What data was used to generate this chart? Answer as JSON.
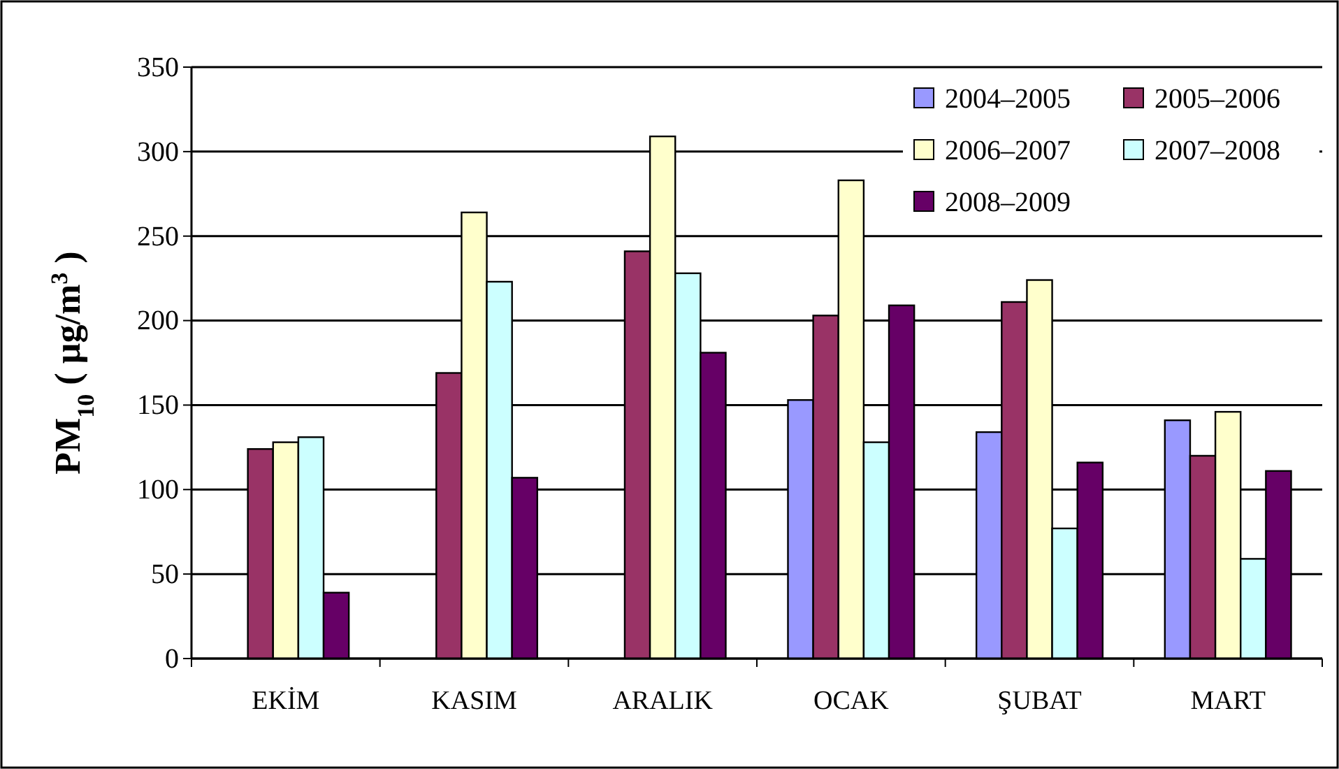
{
  "chart_data": {
    "type": "bar",
    "ylabel": "PM$_{10}$ ( µg/m$^{3}$ )",
    "categories": [
      "EKİM",
      "KASIM",
      "ARALIK",
      "OCAK",
      "ŞUBAT",
      "MART"
    ],
    "series": [
      {
        "name": "2004–2005",
        "color": "#9999ff",
        "values": [
          null,
          null,
          null,
          153,
          134,
          141
        ]
      },
      {
        "name": "2005–2006",
        "color": "#993366",
        "values": [
          124,
          169,
          241,
          203,
          211,
          120
        ]
      },
      {
        "name": "2006–2007",
        "color": "#ffffcc",
        "values": [
          128,
          264,
          309,
          283,
          224,
          146
        ]
      },
      {
        "name": "2007–2008",
        "color": "#ccffff",
        "values": [
          131,
          223,
          228,
          128,
          77,
          59
        ]
      },
      {
        "name": "2008–2009",
        "color": "#660066",
        "values": [
          39,
          107,
          181,
          209,
          116,
          111
        ]
      }
    ],
    "ylim": [
      0,
      350
    ],
    "yticks": [
      0,
      50,
      100,
      150,
      200,
      250,
      300,
      350
    ],
    "grid": "y",
    "legend": "top right"
  }
}
